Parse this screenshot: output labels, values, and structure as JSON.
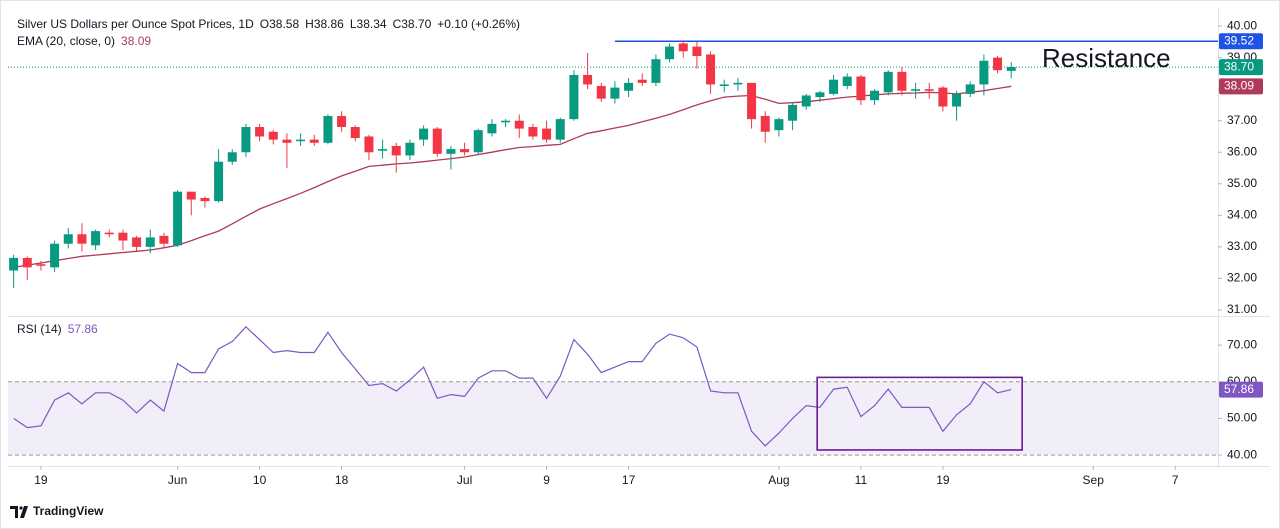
{
  "brand": "TradingView",
  "chart_data": [
    {
      "type": "candlestick",
      "title": "Silver US Dollars per Ounce Spot Prices, 1D",
      "ohlc_letters": [
        "O",
        "H",
        "L",
        "C"
      ],
      "close_label": "38.70",
      "change_label": "+0.10 (+0.26%)",
      "x": [
        0,
        1,
        2,
        3,
        4,
        5,
        6,
        7,
        8,
        9,
        10,
        11,
        12,
        13,
        14,
        15,
        16,
        17,
        18,
        19,
        20,
        21,
        22,
        23,
        24,
        25,
        26,
        27,
        28,
        29,
        30,
        31,
        32,
        33,
        34,
        35,
        36,
        37,
        38,
        39,
        40,
        41,
        42,
        43,
        44,
        45,
        46,
        47,
        48,
        49,
        50,
        51,
        52,
        53,
        54,
        55,
        56,
        57,
        58,
        59,
        60,
        61,
        62,
        63,
        64,
        65,
        66,
        67,
        68,
        69,
        70,
        71,
        72,
        73
      ],
      "open": [
        32.25,
        32.65,
        32.45,
        32.35,
        33.1,
        33.4,
        33.05,
        33.45,
        33.45,
        33.3,
        33.0,
        33.35,
        33.05,
        34.75,
        34.55,
        34.45,
        35.7,
        36.0,
        36.8,
        36.65,
        36.4,
        36.35,
        36.4,
        36.3,
        37.15,
        36.8,
        36.5,
        36.05,
        36.2,
        35.9,
        36.4,
        36.75,
        35.95,
        36.1,
        36.0,
        36.6,
        36.95,
        37.0,
        36.8,
        36.75,
        36.4,
        37.05,
        38.45,
        38.1,
        37.7,
        37.95,
        38.3,
        38.2,
        38.95,
        39.45,
        39.35,
        39.1,
        38.1,
        38.15,
        38.2,
        37.15,
        36.7,
        37.0,
        37.45,
        37.75,
        37.85,
        38.1,
        38.4,
        37.65,
        37.9,
        38.55,
        37.95,
        38.0,
        38.05,
        37.45,
        37.85,
        38.15,
        39.0,
        38.58
      ],
      "high": [
        32.75,
        32.7,
        32.55,
        33.2,
        33.6,
        33.75,
        33.55,
        33.55,
        33.55,
        33.35,
        33.55,
        33.45,
        34.8,
        34.75,
        34.6,
        36.1,
        36.1,
        36.9,
        36.9,
        36.7,
        36.6,
        36.6,
        36.55,
        37.2,
        37.3,
        36.85,
        36.55,
        36.4,
        36.3,
        36.4,
        36.85,
        36.8,
        36.2,
        36.3,
        36.75,
        37.05,
        37.05,
        37.2,
        36.9,
        37.0,
        37.1,
        38.6,
        39.15,
        38.2,
        38.25,
        38.35,
        38.5,
        39.1,
        39.45,
        39.55,
        39.5,
        39.2,
        38.3,
        38.35,
        38.2,
        37.3,
        37.1,
        37.55,
        37.85,
        37.95,
        38.45,
        38.5,
        38.45,
        38.0,
        38.6,
        38.7,
        38.2,
        38.2,
        38.1,
        37.95,
        38.25,
        39.1,
        39.05,
        38.86
      ],
      "low": [
        31.7,
        31.95,
        32.25,
        32.2,
        32.95,
        32.85,
        32.9,
        33.3,
        32.9,
        32.85,
        32.8,
        32.95,
        33.0,
        34.0,
        34.25,
        34.4,
        35.6,
        35.85,
        36.35,
        36.25,
        35.5,
        36.2,
        36.2,
        36.25,
        36.65,
        36.35,
        35.75,
        35.8,
        35.35,
        35.75,
        36.2,
        35.85,
        35.45,
        35.9,
        35.9,
        36.5,
        36.8,
        36.45,
        36.4,
        36.3,
        36.3,
        37.0,
        38.0,
        37.6,
        37.55,
        37.75,
        38.1,
        38.1,
        38.85,
        39.0,
        38.65,
        37.85,
        37.9,
        37.95,
        36.75,
        36.3,
        36.5,
        36.7,
        37.35,
        37.6,
        37.8,
        38.0,
        37.5,
        37.5,
        37.8,
        37.8,
        37.7,
        37.7,
        37.3,
        37.0,
        37.75,
        37.8,
        38.5,
        38.34
      ],
      "close": [
        32.65,
        32.35,
        32.4,
        33.1,
        33.4,
        33.1,
        33.5,
        33.4,
        33.2,
        33.0,
        33.3,
        33.1,
        34.75,
        34.5,
        34.45,
        35.7,
        36.0,
        36.8,
        36.5,
        36.4,
        36.3,
        36.4,
        36.3,
        37.15,
        36.8,
        36.45,
        36.0,
        36.1,
        35.9,
        36.3,
        36.75,
        35.95,
        36.1,
        36.0,
        36.7,
        36.9,
        37.0,
        36.75,
        36.5,
        36.4,
        37.05,
        38.45,
        38.15,
        37.7,
        38.05,
        38.2,
        38.2,
        38.95,
        39.35,
        39.2,
        39.05,
        38.15,
        38.15,
        38.2,
        37.05,
        36.65,
        37.05,
        37.5,
        37.8,
        37.9,
        38.3,
        38.4,
        37.65,
        37.95,
        38.55,
        37.95,
        38.0,
        37.95,
        37.45,
        37.85,
        38.15,
        38.9,
        38.6,
        38.7
      ],
      "up_color": "#089981",
      "down_color": "#f23645",
      "xlim": [
        -0.41,
        88.13
      ],
      "xticks": [
        {
          "value": 2,
          "label": "19"
        },
        {
          "value": 12,
          "label": "Jun"
        },
        {
          "value": 18,
          "label": "10"
        },
        {
          "value": 24,
          "label": "18"
        },
        {
          "value": 33,
          "label": "Jul"
        },
        {
          "value": 39,
          "label": "9"
        },
        {
          "value": 45,
          "label": "17"
        },
        {
          "value": 56,
          "label": "Aug"
        },
        {
          "value": 62,
          "label": "11"
        },
        {
          "value": 68,
          "label": "19"
        },
        {
          "value": 79,
          "label": "Sep"
        },
        {
          "value": 85,
          "label": "7"
        }
      ],
      "ylim": [
        30.84,
        40.51
      ],
      "yticks": [
        {
          "value": 31,
          "label": "31.00"
        },
        {
          "value": 32,
          "label": "32.00"
        },
        {
          "value": 33,
          "label": "33.00"
        },
        {
          "value": 34,
          "label": "34.00"
        },
        {
          "value": 35,
          "label": "35.00"
        },
        {
          "value": 36,
          "label": "36.00"
        },
        {
          "value": 37,
          "label": "37.00"
        },
        {
          "value": 38,
          "label": "38.00"
        },
        {
          "value": 39,
          "label": "39.00"
        },
        {
          "value": 40,
          "label": "40.00"
        }
      ],
      "ema": {
        "name": "EMA (20, close, 0)",
        "color": "#b03a5b",
        "values": [
          32.35,
          32.42,
          32.49,
          32.56,
          32.63,
          32.7,
          32.74,
          32.78,
          32.82,
          32.86,
          32.9,
          32.97,
          33.05,
          33.2,
          33.35,
          33.5,
          33.73,
          33.97,
          34.2,
          34.37,
          34.53,
          34.7,
          34.88,
          35.07,
          35.25,
          35.4,
          35.55,
          35.59,
          35.63,
          35.66,
          35.7,
          35.75,
          35.8,
          35.85,
          35.93,
          36.0,
          36.08,
          36.15,
          36.18,
          36.22,
          36.25,
          36.43,
          36.6,
          36.68,
          36.77,
          36.85,
          36.97,
          37.08,
          37.2,
          37.35,
          37.5,
          37.63,
          37.75,
          37.78,
          37.8,
          37.68,
          37.55,
          37.57,
          37.6,
          37.65,
          37.7,
          37.75,
          37.78,
          37.82,
          37.85,
          37.87,
          37.88,
          37.9,
          37.88,
          37.85,
          37.9,
          37.95,
          38.02,
          38.09
        ]
      },
      "resistance": {
        "label": "Resistance",
        "value": 39.52,
        "x_start": 44,
        "color": "#1e53e5"
      }
    },
    {
      "type": "line",
      "name": "RSI (14)",
      "color": "#7e57c2",
      "values": [
        50,
        47.5,
        48,
        55,
        57,
        54,
        57,
        57,
        55,
        51.5,
        55,
        52,
        65,
        62.5,
        62.5,
        69,
        71,
        75,
        71.5,
        68,
        68.5,
        68,
        68,
        73.5,
        68,
        63.5,
        59,
        59.5,
        57.5,
        60.5,
        64,
        55.5,
        56.5,
        56,
        61,
        63,
        63,
        61,
        61,
        55.5,
        61.5,
        71.5,
        67.5,
        62.5,
        64,
        65.5,
        65.5,
        70.5,
        73,
        72,
        69.5,
        57.5,
        57,
        57,
        46.5,
        42.5,
        46,
        50,
        53.5,
        53,
        58,
        58.5,
        50.5,
        53.5,
        58,
        53,
        53,
        53,
        46.5,
        51,
        54,
        60,
        57,
        57.86
      ],
      "ylim": [
        37.3,
        77.4
      ],
      "yticks": [
        {
          "value": 40,
          "label": "40.00"
        },
        {
          "value": 50,
          "label": "50.00"
        },
        {
          "value": 60,
          "label": "60.00"
        },
        {
          "value": 70,
          "label": "70.00"
        }
      ],
      "band": [
        40,
        60
      ],
      "box": {
        "x": [
          58.8,
          73.8
        ],
        "y": [
          41.4,
          61.2
        ],
        "color": "#6a1b9a"
      }
    }
  ]
}
